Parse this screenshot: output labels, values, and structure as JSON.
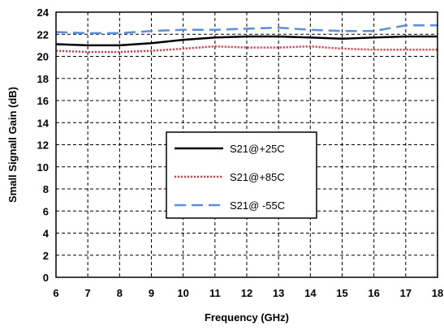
{
  "chart_data": {
    "type": "line",
    "title": "",
    "xlabel": "Frequency (GHz)",
    "ylabel": "Small Signall Gain (dB)",
    "xlim": [
      6,
      18
    ],
    "ylim": [
      0,
      24
    ],
    "xticks": [
      "6",
      "7",
      "8",
      "9",
      "10",
      "11",
      "12",
      "13",
      "14",
      "15",
      "16",
      "17",
      "18"
    ],
    "yticks": [
      "0",
      "2",
      "4",
      "6",
      "8",
      "10",
      "12",
      "14",
      "16",
      "18",
      "20",
      "22",
      "24"
    ],
    "grid": true,
    "legend_position": "center",
    "x": [
      6,
      7,
      8,
      9,
      10,
      11,
      12,
      13,
      14,
      15,
      16,
      17,
      18
    ],
    "series": [
      {
        "name": "S21@+25C",
        "color": "#000000",
        "style": "solid",
        "values": [
          21.1,
          21.0,
          21.0,
          21.2,
          21.5,
          21.7,
          21.8,
          21.8,
          21.7,
          21.6,
          21.7,
          21.8,
          21.8
        ]
      },
      {
        "name": "S21@+85C",
        "color": "#e8303a",
        "style": "dotted",
        "values": [
          20.5,
          20.4,
          20.4,
          20.5,
          20.7,
          20.9,
          20.8,
          20.8,
          20.9,
          20.7,
          20.6,
          20.6,
          20.6
        ]
      },
      {
        "name": "S21@ -55C",
        "color": "#5b8fd9",
        "style": "dashed",
        "values": [
          22.2,
          22.1,
          22.1,
          22.3,
          22.4,
          22.4,
          22.5,
          22.6,
          22.4,
          22.3,
          22.3,
          22.8,
          22.8
        ]
      }
    ]
  }
}
